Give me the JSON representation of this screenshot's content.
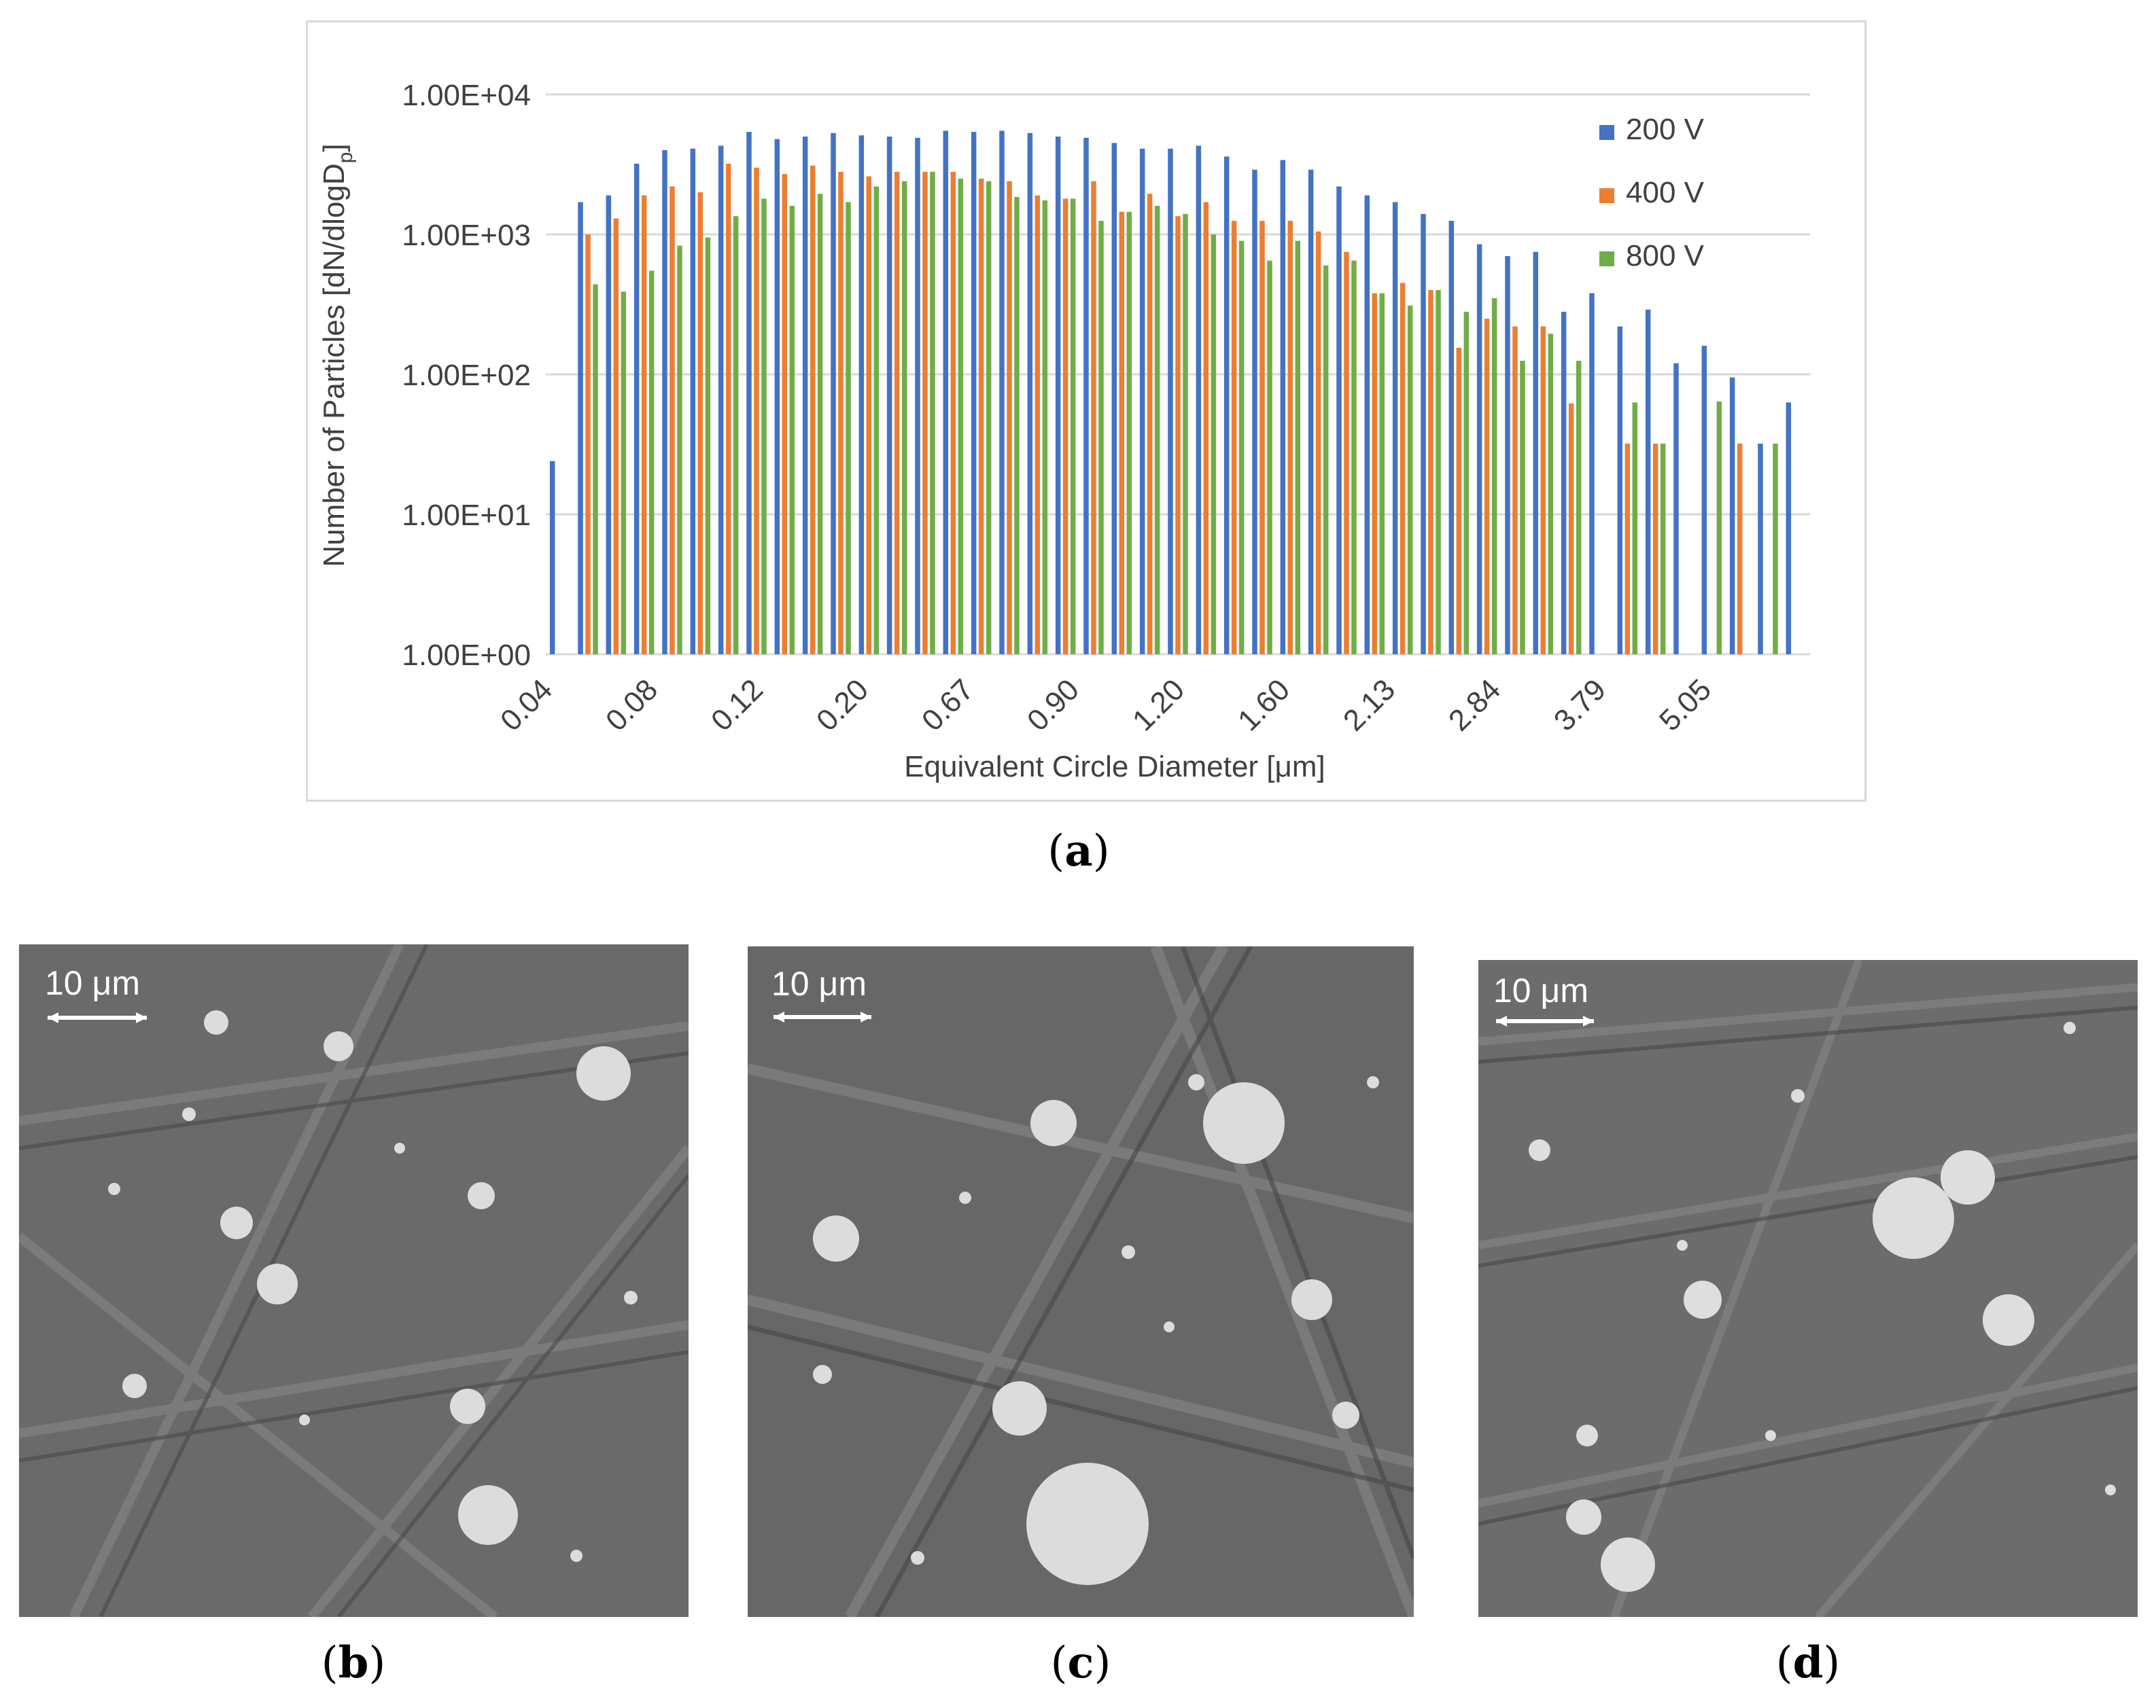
{
  "chart_data": {
    "type": "bar",
    "ylabel_main": "Number of Particles [dN/dlogD",
    "ylabel_sub": "p",
    "ylabel_end": "]",
    "xlabel": "Equivalent Circle Diameter [μm]",
    "yscale": "log",
    "ylim": [
      1,
      10000
    ],
    "y_ticks": [
      "1.00E+00",
      "1.00E+01",
      "1.00E+02",
      "1.00E+03",
      "1.00E+04"
    ],
    "x_tick_labels": [
      "0.04",
      "0.08",
      "0.12",
      "0.20",
      "0.67",
      "0.90",
      "1.20",
      "1.60",
      "2.13",
      "2.84",
      "3.79",
      "5.05"
    ],
    "legend_position": "top-right",
    "bin_count": 45,
    "series": [
      {
        "name": "200 V",
        "color": "#4472c4",
        "values": [
          24,
          1700,
          1900,
          3200,
          4000,
          4100,
          4300,
          5400,
          4800,
          5000,
          5300,
          5100,
          5000,
          4900,
          5500,
          5400,
          5500,
          5300,
          5000,
          4900,
          4500,
          4100,
          4100,
          4300,
          3600,
          2900,
          3400,
          2900,
          2200,
          1900,
          1700,
          1400,
          1250,
          850,
          700,
          750,
          280,
          380,
          220,
          290,
          120,
          160,
          95,
          32,
          63
        ]
      },
      {
        "name": "400 V",
        "color": "#ed7d31",
        "values": [
          null,
          1000,
          1300,
          1900,
          2200,
          2000,
          3200,
          3000,
          2700,
          3100,
          2800,
          2600,
          2800,
          2800,
          2800,
          2500,
          2400,
          1900,
          1800,
          2400,
          1450,
          1950,
          1350,
          1700,
          1250,
          1250,
          1250,
          1050,
          750,
          380,
          450,
          400,
          155,
          250,
          220,
          220,
          62,
          null,
          32,
          32,
          null,
          null,
          32,
          null,
          null
        ]
      },
      {
        "name": "800 V",
        "color": "#70ad47",
        "values": [
          null,
          440,
          390,
          550,
          830,
          950,
          1350,
          1800,
          1600,
          1950,
          1700,
          2200,
          2400,
          2800,
          2500,
          2400,
          1850,
          1750,
          1800,
          1250,
          1450,
          1600,
          1400,
          1000,
          900,
          650,
          900,
          600,
          650,
          380,
          310,
          400,
          280,
          350,
          125,
          195,
          125,
          null,
          63,
          32,
          null,
          64,
          null,
          32,
          null
        ]
      }
    ]
  },
  "captions": {
    "a": "a",
    "b": "b",
    "c": "c",
    "d": "d"
  },
  "panels": [
    {
      "scale": "10 μm"
    },
    {
      "scale": "10 μm"
    },
    {
      "scale": "10 μm"
    }
  ]
}
